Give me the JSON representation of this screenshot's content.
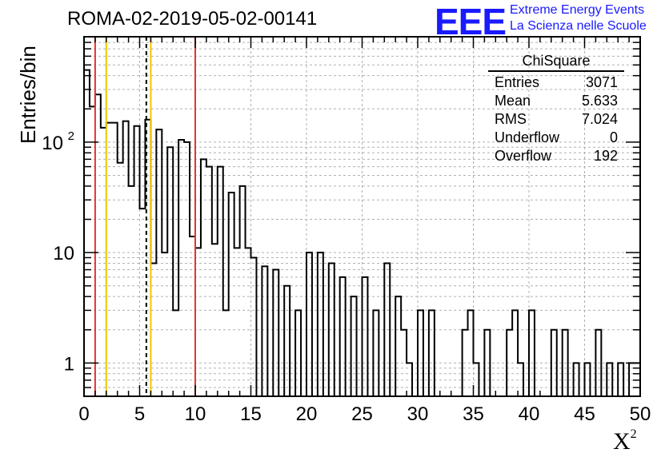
{
  "header": {
    "title": "ROMA-02-2019-05-02-00141",
    "logo": "EEE",
    "logo_line1": "Extreme Energy Events",
    "logo_line2": "La Scienza nelle Scuole"
  },
  "stats_box": {
    "title": "ChiSquare",
    "rows": [
      {
        "label": "Entries",
        "value": "3071"
      },
      {
        "label": "Mean",
        "value": "5.633"
      },
      {
        "label": "RMS",
        "value": "7.024"
      },
      {
        "label": "Underflow",
        "value": "0"
      },
      {
        "label": "Overflow",
        "value": "192"
      }
    ]
  },
  "chart_data": {
    "type": "bar",
    "histogram": "step",
    "ylabel": "Entries/bin",
    "xlabel": "X",
    "xlabel_superscript": "2",
    "xlim": [
      0,
      50
    ],
    "ylim": [
      0.5,
      900
    ],
    "yscale": "log",
    "grid": true,
    "bin_width": 0.5,
    "x_ticks": [
      "0",
      "5",
      "10",
      "15",
      "20",
      "25",
      "30",
      "35",
      "40",
      "45",
      "50"
    ],
    "y_ticks": [
      "1",
      "10",
      "10^2"
    ],
    "values": [
      450,
      210,
      270,
      135,
      150,
      150,
      65,
      155,
      40,
      140,
      25,
      160,
      8,
      130,
      10,
      90,
      3,
      105,
      100,
      14,
      11,
      70,
      60,
      12,
      60,
      3,
      35,
      11,
      40,
      11,
      9,
      0,
      7.5,
      0,
      7,
      0,
      5,
      0,
      3,
      0,
      10,
      0,
      10,
      0,
      8,
      0,
      6,
      0,
      4,
      0,
      6,
      0,
      3,
      0,
      8,
      0,
      4,
      2,
      1,
      0,
      3,
      0,
      3,
      0,
      0.5,
      0,
      0.5,
      0,
      2,
      3,
      1,
      0,
      2,
      0,
      0.5,
      0,
      2,
      3,
      1,
      0,
      3,
      0,
      0.5,
      0,
      2,
      0,
      2,
      0,
      1,
      0,
      1,
      0,
      2,
      0,
      1,
      0,
      1,
      0,
      1,
      1
    ],
    "vertical_lines": [
      {
        "x": 1.0,
        "color": "#e8322b",
        "style": "solid"
      },
      {
        "x": 2.0,
        "color": "#f2c500",
        "style": "solid"
      },
      {
        "x": 5.6,
        "color": "#000000",
        "style": "dashed"
      },
      {
        "x": 6.0,
        "color": "#f2c500",
        "style": "solid"
      },
      {
        "x": 10.0,
        "color": "#e8322b",
        "style": "solid"
      }
    ]
  },
  "colors": {
    "logo": "#1a1aff",
    "red_line": "#e8322b",
    "yellow_line": "#f2c500",
    "grid": "#b0b0b0"
  }
}
